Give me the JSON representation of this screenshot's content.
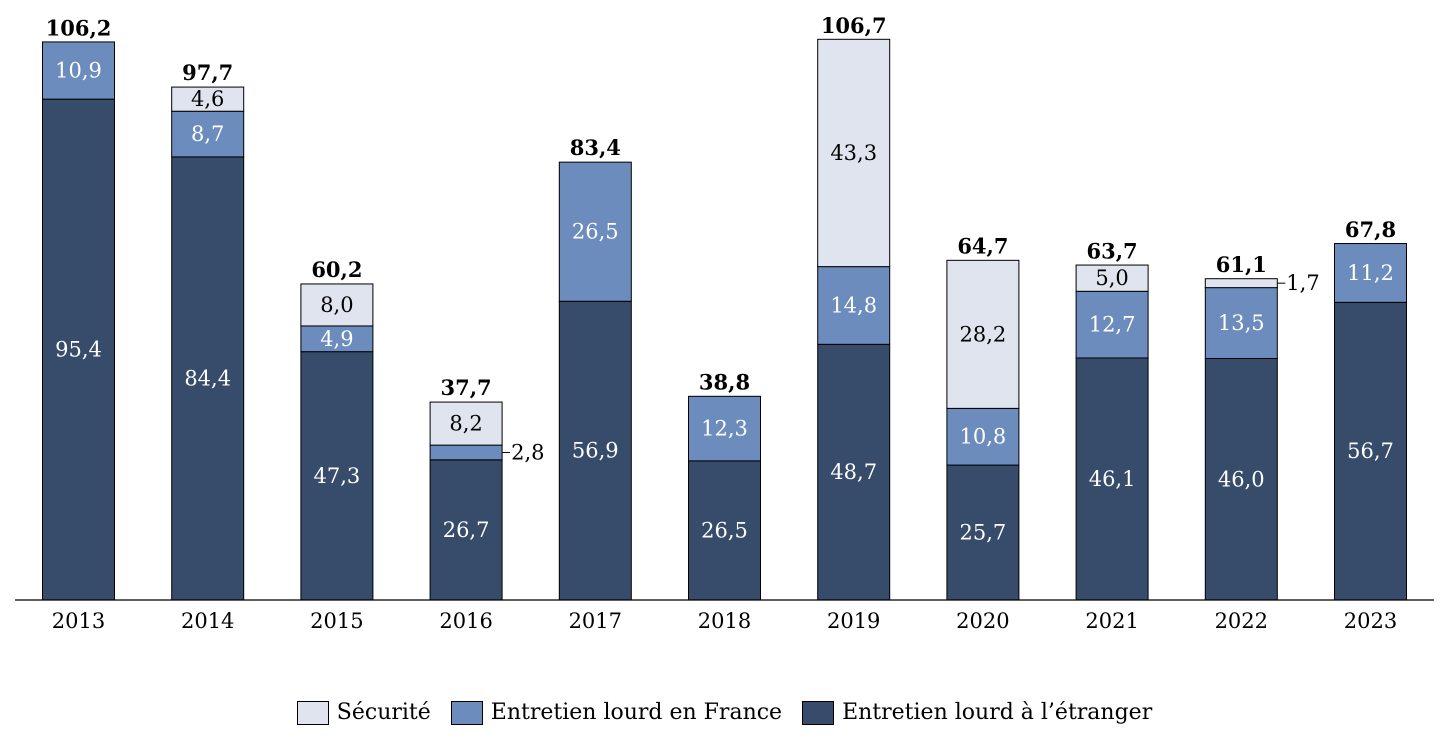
{
  "chart_data": {
    "type": "bar",
    "stacked": true,
    "categories": [
      "2013",
      "2014",
      "2015",
      "2016",
      "2017",
      "2018",
      "2019",
      "2020",
      "2021",
      "2022",
      "2023"
    ],
    "series": [
      {
        "name": "Entretien lourd à l’étranger",
        "color": "#374b6b",
        "label_color": "#ffffff",
        "values": [
          95.4,
          84.4,
          47.3,
          26.7,
          56.9,
          26.5,
          48.7,
          25.7,
          46.1,
          46.0,
          56.7
        ],
        "labels": [
          "95,4",
          "84,4",
          "47,3",
          "26,7",
          "56,9",
          "26,5",
          "48,7",
          "25,7",
          "46,1",
          "46,0",
          "56,7"
        ]
      },
      {
        "name": "Entretien lourd en France",
        "color": "#6b8cbc",
        "label_color": "#ffffff",
        "values": [
          10.9,
          8.7,
          4.9,
          2.8,
          26.5,
          12.3,
          14.8,
          10.8,
          12.7,
          13.5,
          11.2
        ],
        "labels": [
          "10,9",
          "8,7",
          "4,9",
          "2,8",
          "26,5",
          "12,3",
          "14,8",
          "10,8",
          "12,7",
          "13,5",
          "11,2"
        ]
      },
      {
        "name": "Sécurité",
        "color": "#dfe4ee",
        "label_color": "#000000",
        "values": [
          0,
          4.6,
          8.0,
          8.2,
          0,
          0,
          43.3,
          28.2,
          5.0,
          1.7,
          0
        ],
        "labels": [
          "",
          "4,6",
          "8,0",
          "8,2",
          "",
          "",
          "43,3",
          "28,2",
          "5,0",
          "1,7",
          ""
        ]
      }
    ],
    "totals": [
      106.2,
      97.7,
      60.2,
      37.7,
      83.4,
      38.8,
      106.7,
      64.7,
      63.7,
      61.1,
      67.8
    ],
    "total_labels": [
      "106,2",
      "97,7",
      "60,2",
      "37,7",
      "83,4",
      "38,8",
      "106,7",
      "64,7",
      "63,7",
      "61,1",
      "67,8"
    ],
    "outside_labels": [
      {
        "category": "2016",
        "series": "Entretien lourd en France"
      },
      {
        "category": "2022",
        "series": "Sécurité"
      }
    ],
    "ylim": [
      0,
      115
    ],
    "legend": {
      "position": "bottom",
      "order": [
        "Sécurité",
        "Entretien lourd en France",
        "Entretien lourd à l’étranger"
      ]
    },
    "grid": false
  }
}
